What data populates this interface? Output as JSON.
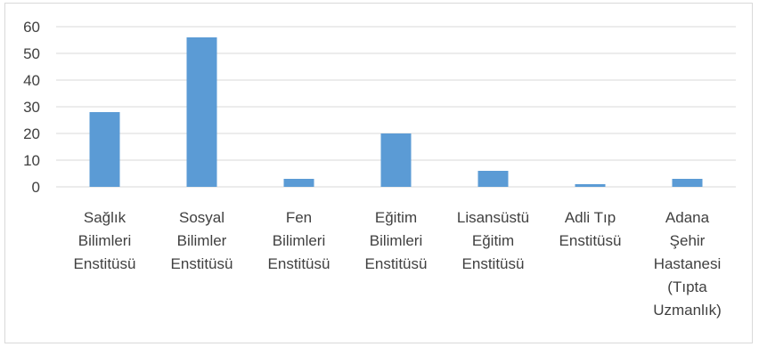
{
  "chart_data": {
    "type": "bar",
    "categories": [
      [
        "Sağlık",
        "Bilimleri",
        "Enstitüsü"
      ],
      [
        "Sosyal",
        "Bilimler",
        "Enstitüsü"
      ],
      [
        "Fen",
        "Bilimleri",
        "Enstitüsü"
      ],
      [
        "Eğitim",
        "Bilimleri",
        "Enstitüsü"
      ],
      [
        "Lisansüstü",
        "Eğitim",
        "Enstitüsü"
      ],
      [
        "Adli Tıp",
        "Enstitüsü"
      ],
      [
        "Adana",
        "Şehir",
        "Hastanesi",
        "(Tıpta",
        "Uzmanlık)"
      ]
    ],
    "values": [
      28,
      56,
      3,
      20,
      6,
      1,
      3
    ],
    "ylim": [
      0,
      60
    ],
    "yticks": [
      0,
      10,
      20,
      30,
      40,
      50,
      60
    ],
    "grid": true,
    "bar_color": "#5b9bd5",
    "grid_color": "#d9d9d9",
    "title": "",
    "xlabel": "",
    "ylabel": ""
  }
}
